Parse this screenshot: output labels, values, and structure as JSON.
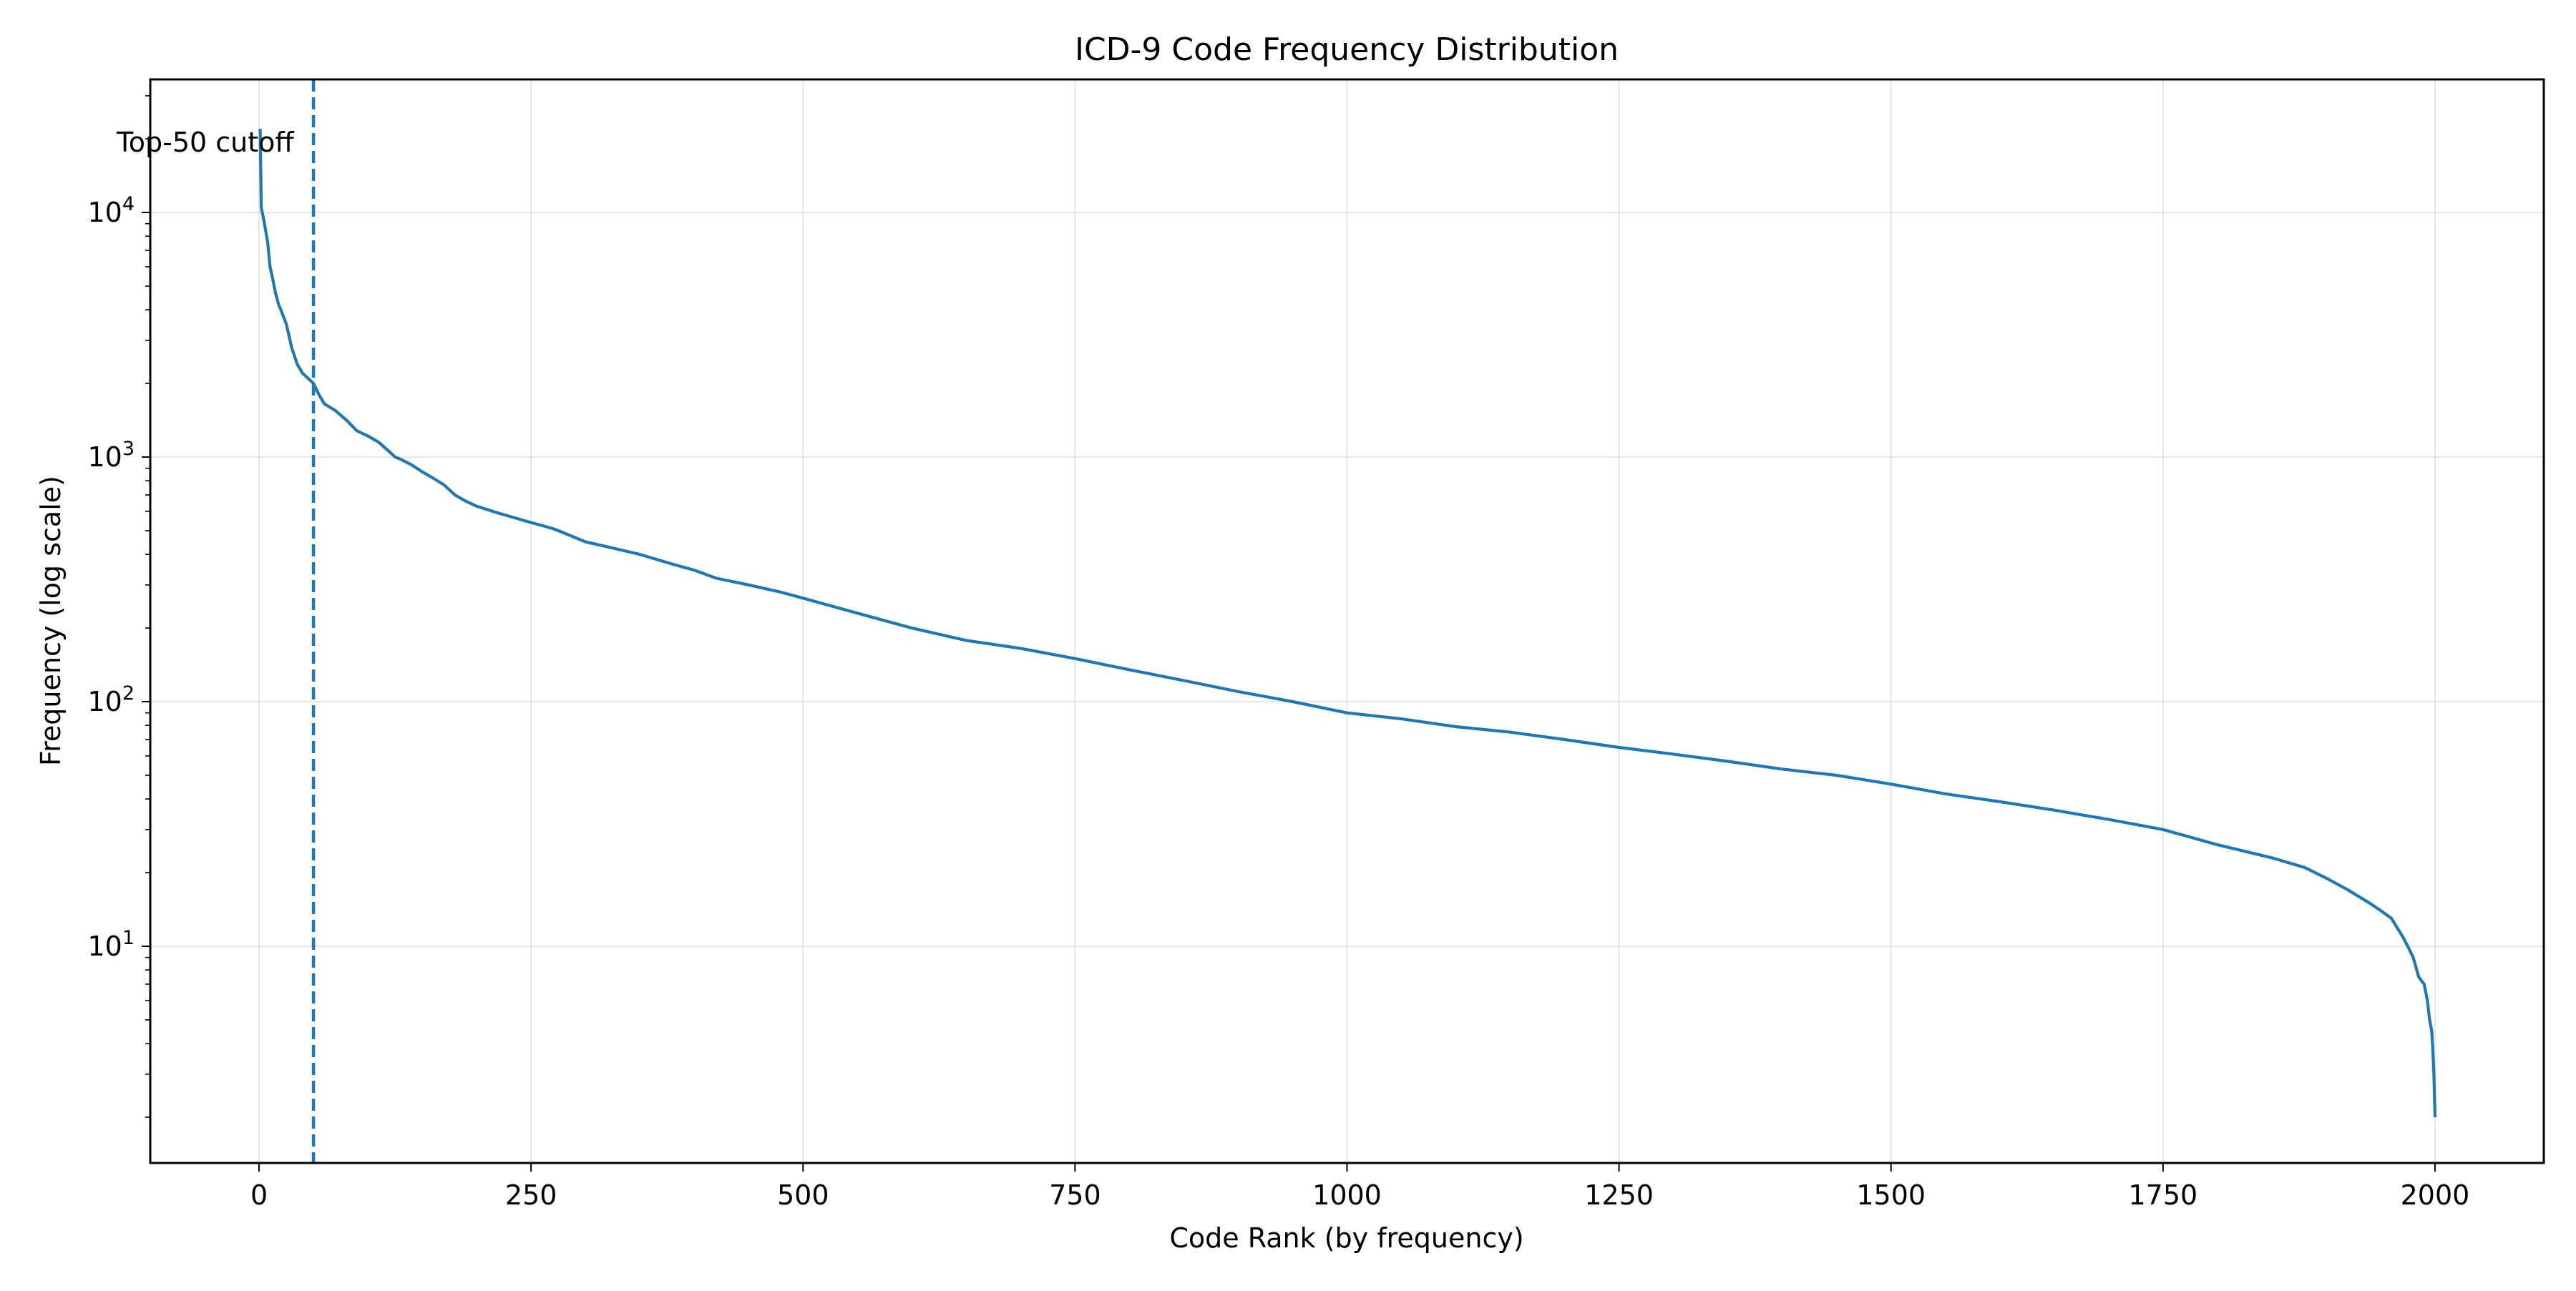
{
  "chart_data": {
    "type": "line",
    "title": "ICD-9 Code Frequency Distribution",
    "xlabel": "Code Rank (by frequency)",
    "ylabel": "Frequency (log scale)",
    "y_scale": "log",
    "xlim": [
      -100,
      2100
    ],
    "ylim": [
      1.3,
      35000
    ],
    "grid": true,
    "x_ticks": [
      0,
      250,
      500,
      750,
      1000,
      1250,
      1500,
      1750,
      2000
    ],
    "x_tick_labels": [
      "0",
      "250",
      "500",
      "750",
      "1000",
      "1250",
      "1500",
      "1750",
      "2000"
    ],
    "y_ticks": [
      10,
      100,
      1000,
      10000
    ],
    "y_tick_labels": [
      {
        "base": "10",
        "exp": "1"
      },
      {
        "base": "10",
        "exp": "2"
      },
      {
        "base": "10",
        "exp": "3"
      },
      {
        "base": "10",
        "exp": "4"
      }
    ],
    "series": [
      {
        "color": "#1f77b4",
        "x": [
          1,
          2,
          5,
          8,
          10,
          12,
          15,
          18,
          20,
          25,
          30,
          35,
          40,
          45,
          50,
          55,
          60,
          65,
          70,
          80,
          90,
          100,
          110,
          120,
          125,
          130,
          140,
          150,
          160,
          170,
          180,
          190,
          200,
          220,
          250,
          270,
          280,
          300,
          320,
          350,
          380,
          400,
          420,
          450,
          480,
          500,
          550,
          600,
          650,
          700,
          750,
          800,
          850,
          900,
          950,
          1000,
          1050,
          1100,
          1150,
          1200,
          1250,
          1300,
          1350,
          1400,
          1450,
          1500,
          1550,
          1600,
          1650,
          1700,
          1750,
          1800,
          1850,
          1880,
          1900,
          1920,
          1940,
          1950,
          1960,
          1970,
          1975,
          1980,
          1985,
          1990,
          1993,
          1995,
          1997,
          1998,
          1999,
          2000
        ],
        "y": [
          22000,
          10500,
          9000,
          7500,
          6000,
          5500,
          4700,
          4200,
          4000,
          3500,
          2800,
          2400,
          2200,
          2100,
          2000,
          1800,
          1650,
          1600,
          1550,
          1420,
          1280,
          1220,
          1150,
          1050,
          1000,
          980,
          930,
          870,
          820,
          770,
          700,
          660,
          630,
          590,
          540,
          510,
          490,
          450,
          430,
          400,
          365,
          345,
          320,
          300,
          280,
          265,
          230,
          200,
          178,
          165,
          150,
          135,
          122,
          110,
          100,
          90,
          85,
          79,
          75,
          70,
          65,
          61,
          57,
          53,
          50,
          46,
          42,
          39,
          36,
          33,
          30,
          26,
          23,
          21,
          19,
          17,
          15,
          14,
          13,
          11,
          10,
          9,
          7.5,
          7,
          6,
          5,
          4.5,
          3.8,
          3,
          2
        ]
      }
    ],
    "annotations": [
      {
        "x": 50,
        "style": "dashed-vertical-line",
        "color": "#1f77b4",
        "label": "Top-50 cutoff"
      }
    ]
  }
}
